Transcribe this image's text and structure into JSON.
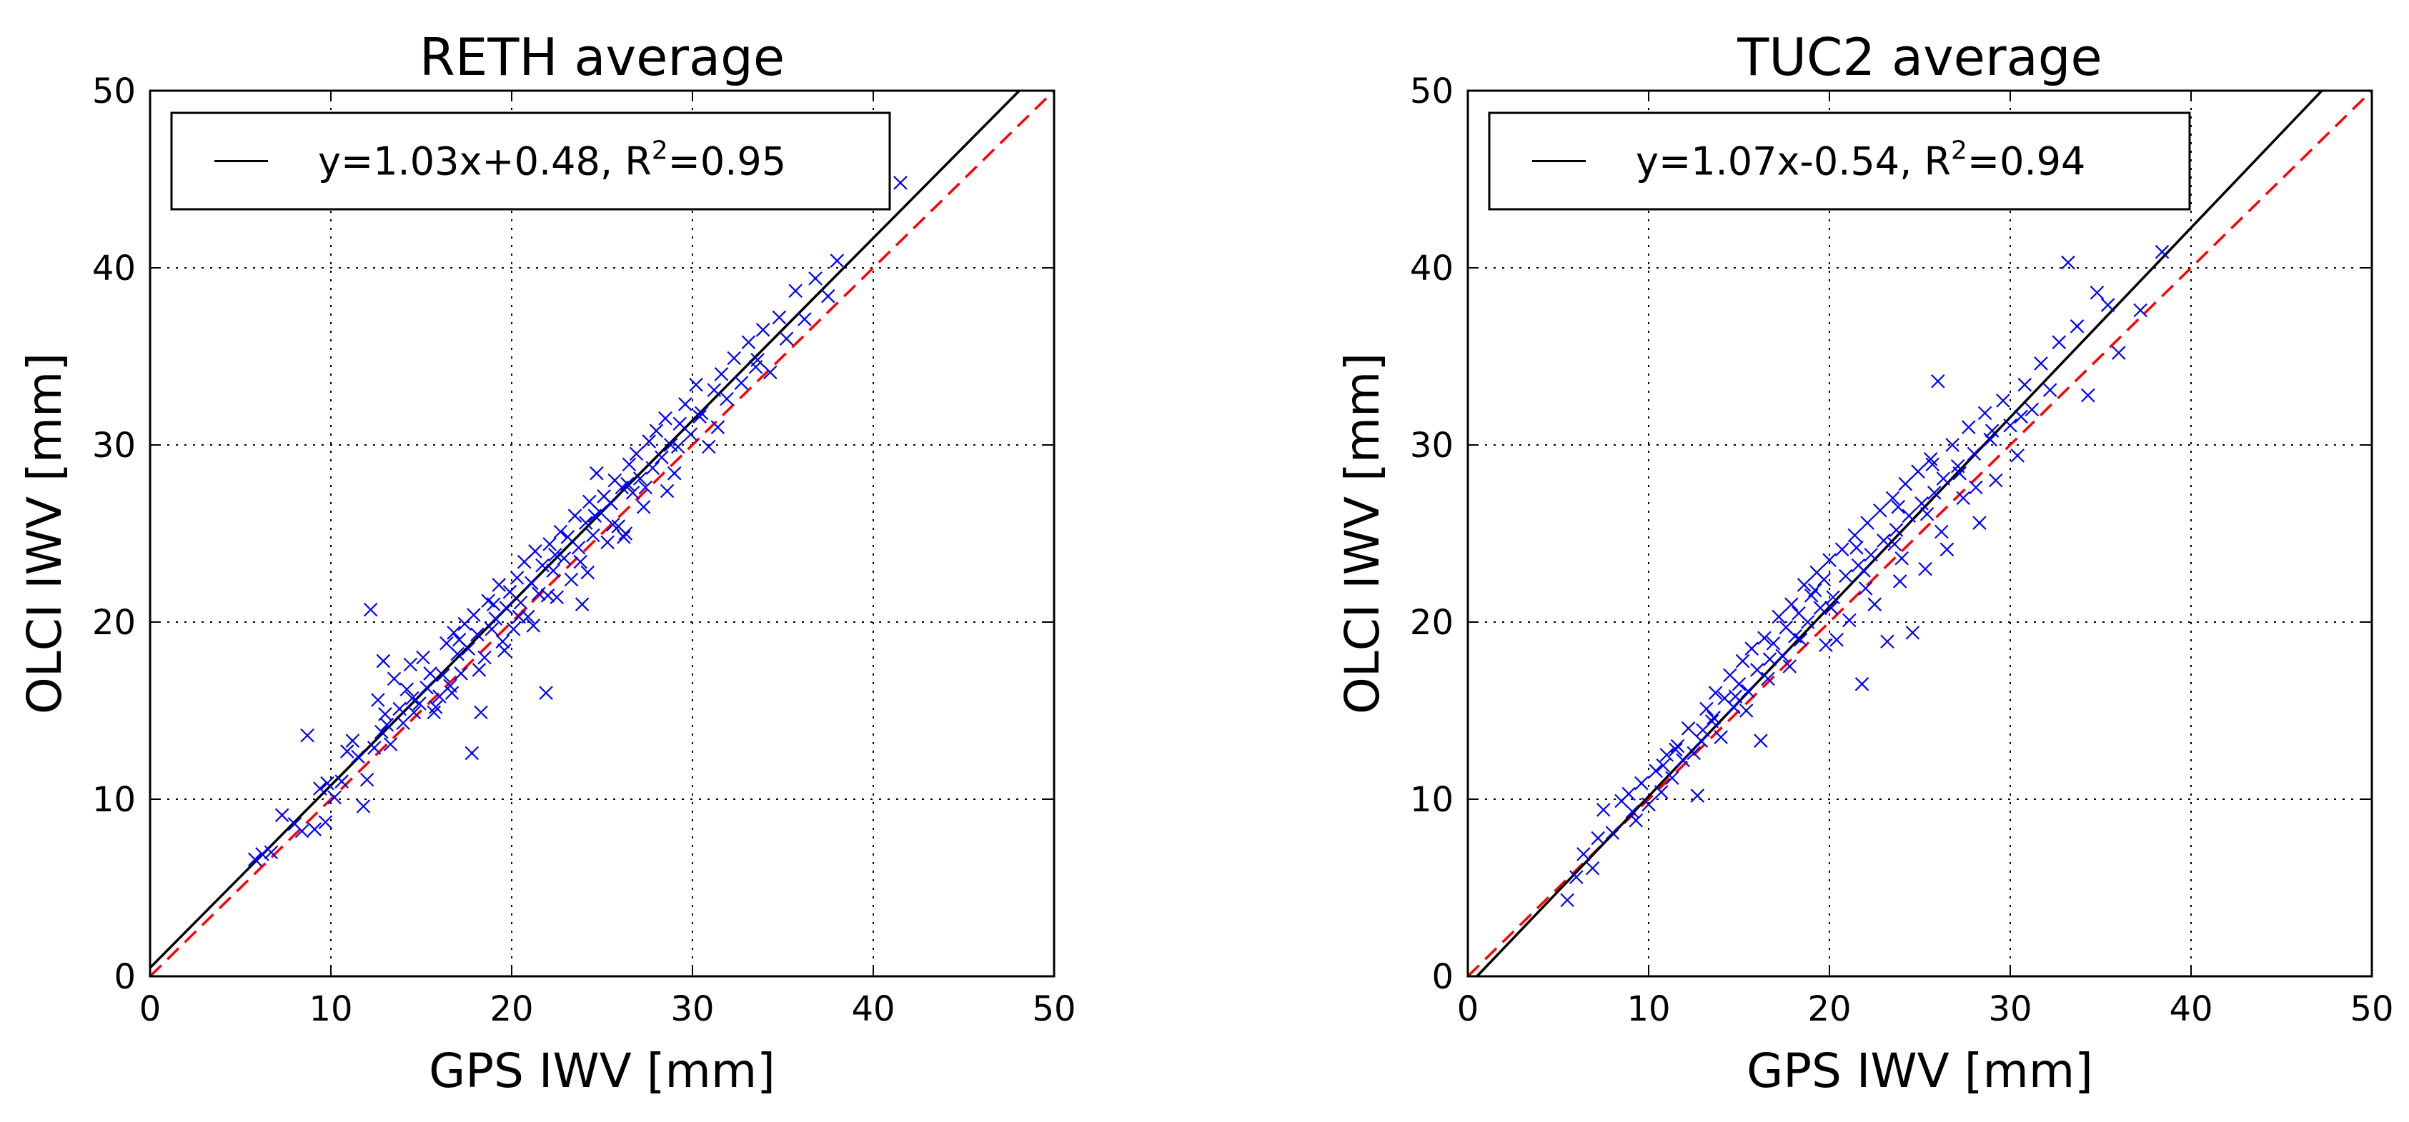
{
  "chart_data": [
    {
      "type": "scatter",
      "title": "RETH average",
      "xlabel": "GPS IWV [mm]",
      "ylabel": "OLCI IWV [mm]",
      "xlim": [
        0,
        50
      ],
      "ylim": [
        0,
        50
      ],
      "xticks": [
        "0",
        "10",
        "20",
        "30",
        "40",
        "50"
      ],
      "yticks": [
        "0",
        "10",
        "20",
        "30",
        "40",
        "50"
      ],
      "grid": true,
      "legend_position": "top-left",
      "legend_label": "y=1.03x+0.48, R",
      "legend_sup": "2",
      "legend_suffix": "=0.95",
      "fit": {
        "slope": 1.03,
        "intercept": 0.48,
        "r2": 0.95
      },
      "identity_line": true,
      "marker": "x",
      "marker_color": "#0000ff",
      "fit_color": "#000000",
      "identity_color": "#ff0000",
      "points": [
        [
          5.8,
          6.6
        ],
        [
          6.2,
          6.9
        ],
        [
          6.7,
          7.0
        ],
        [
          7.3,
          9.1
        ],
        [
          8.0,
          8.6
        ],
        [
          8.4,
          8.2
        ],
        [
          8.7,
          13.6
        ],
        [
          9.1,
          8.3
        ],
        [
          9.4,
          10.6
        ],
        [
          9.8,
          10.9
        ],
        [
          10.2,
          10.1
        ],
        [
          10.6,
          11.0
        ],
        [
          10.9,
          12.7
        ],
        [
          11.2,
          13.3
        ],
        [
          11.5,
          12.4
        ],
        [
          11.8,
          9.6
        ],
        [
          12.0,
          11.1
        ],
        [
          12.2,
          20.7
        ],
        [
          12.4,
          12.9
        ],
        [
          12.6,
          15.6
        ],
        [
          12.9,
          17.8
        ],
        [
          13.1,
          14.2
        ],
        [
          13.3,
          13.1
        ],
        [
          13.5,
          16.8
        ],
        [
          13.8,
          15.1
        ],
        [
          14.0,
          14.3
        ],
        [
          14.2,
          16.2
        ],
        [
          14.4,
          17.6
        ],
        [
          14.6,
          14.9
        ],
        [
          14.9,
          15.4
        ],
        [
          15.1,
          18.0
        ],
        [
          15.3,
          16.3
        ],
        [
          15.5,
          17.1
        ],
        [
          15.7,
          14.9
        ],
        [
          16.0,
          15.8
        ],
        [
          16.2,
          17.0
        ],
        [
          16.4,
          18.8
        ],
        [
          16.6,
          16.4
        ],
        [
          16.8,
          19.4
        ],
        [
          17.0,
          18.2
        ],
        [
          17.2,
          17.1
        ],
        [
          17.4,
          19.9
        ],
        [
          17.6,
          18.5
        ],
        [
          17.8,
          12.6
        ],
        [
          17.9,
          20.4
        ],
        [
          18.1,
          19.3
        ],
        [
          18.3,
          14.9
        ],
        [
          18.5,
          18.0
        ],
        [
          18.7,
          21.2
        ],
        [
          18.9,
          19.6
        ],
        [
          19.1,
          20.2
        ],
        [
          19.3,
          22.1
        ],
        [
          19.5,
          18.9
        ],
        [
          19.7,
          20.8
        ],
        [
          19.9,
          21.7
        ],
        [
          20.1,
          19.6
        ],
        [
          20.3,
          22.5
        ],
        [
          20.5,
          21.1
        ],
        [
          20.7,
          23.4
        ],
        [
          20.9,
          20.3
        ],
        [
          21.1,
          22.2
        ],
        [
          21.3,
          24.0
        ],
        [
          21.5,
          21.6
        ],
        [
          21.7,
          23.2
        ],
        [
          21.9,
          16.0
        ],
        [
          22.1,
          24.4
        ],
        [
          22.3,
          22.9
        ],
        [
          22.5,
          21.4
        ],
        [
          22.7,
          25.1
        ],
        [
          22.9,
          23.6
        ],
        [
          23.1,
          24.8
        ],
        [
          23.3,
          22.4
        ],
        [
          23.5,
          26.0
        ],
        [
          23.7,
          24.2
        ],
        [
          23.9,
          21.0
        ],
        [
          24.1,
          25.6
        ],
        [
          24.3,
          26.8
        ],
        [
          24.5,
          24.9
        ],
        [
          24.7,
          28.4
        ],
        [
          24.9,
          26.2
        ],
        [
          25.1,
          27.1
        ],
        [
          25.3,
          24.5
        ],
        [
          25.5,
          26.7
        ],
        [
          25.7,
          28.0
        ],
        [
          25.9,
          25.4
        ],
        [
          26.1,
          27.6
        ],
        [
          26.3,
          25.0
        ],
        [
          26.5,
          28.9
        ],
        [
          26.7,
          27.3
        ],
        [
          26.9,
          29.5
        ],
        [
          27.1,
          28.1
        ],
        [
          27.3,
          26.5
        ],
        [
          27.6,
          30.2
        ],
        [
          27.8,
          28.7
        ],
        [
          28.0,
          30.8
        ],
        [
          28.3,
          29.3
        ],
        [
          28.5,
          31.5
        ],
        [
          28.8,
          30.0
        ],
        [
          29.0,
          28.4
        ],
        [
          29.3,
          31.2
        ],
        [
          29.6,
          32.3
        ],
        [
          29.9,
          30.6
        ],
        [
          30.2,
          33.4
        ],
        [
          30.5,
          31.8
        ],
        [
          30.9,
          29.9
        ],
        [
          31.2,
          33.1
        ],
        [
          31.6,
          34.0
        ],
        [
          31.9,
          32.6
        ],
        [
          32.3,
          34.9
        ],
        [
          32.7,
          33.5
        ],
        [
          33.1,
          35.8
        ],
        [
          33.5,
          34.4
        ],
        [
          33.9,
          36.5
        ],
        [
          34.3,
          34.1
        ],
        [
          34.8,
          37.2
        ],
        [
          35.2,
          36.0
        ],
        [
          35.7,
          38.7
        ],
        [
          36.2,
          37.1
        ],
        [
          36.8,
          39.4
        ],
        [
          37.5,
          38.4
        ],
        [
          38.0,
          40.4
        ],
        [
          41.5,
          44.8
        ],
        [
          9.7,
          8.7
        ],
        [
          13.0,
          14.8
        ],
        [
          15.8,
          15.2
        ],
        [
          18.2,
          17.3
        ],
        [
          20.4,
          20.3
        ],
        [
          22.0,
          21.5
        ],
        [
          23.8,
          23.4
        ],
        [
          25.6,
          25.5
        ],
        [
          27.4,
          27.6
        ],
        [
          29.2,
          29.9
        ],
        [
          31.4,
          31.0
        ],
        [
          33.6,
          34.8
        ],
        [
          16.7,
          16.0
        ],
        [
          19.6,
          18.4
        ],
        [
          21.2,
          19.8
        ],
        [
          24.2,
          22.8
        ],
        [
          26.2,
          24.8
        ],
        [
          28.6,
          27.4
        ],
        [
          12.8,
          13.8
        ],
        [
          14.5,
          15.7
        ],
        [
          17.1,
          19.0
        ],
        [
          19.0,
          21.0
        ],
        [
          22.4,
          23.8
        ],
        [
          24.6,
          26.0
        ],
        [
          26.4,
          27.8
        ],
        [
          30.4,
          31.6
        ]
      ]
    },
    {
      "type": "scatter",
      "title": "TUC2 average",
      "xlabel": "GPS IWV [mm]",
      "ylabel": "OLCI IWV [mm]",
      "xlim": [
        0,
        50
      ],
      "ylim": [
        0,
        50
      ],
      "xticks": [
        "0",
        "10",
        "20",
        "30",
        "40",
        "50"
      ],
      "yticks": [
        "0",
        "10",
        "20",
        "30",
        "40",
        "50"
      ],
      "grid": true,
      "legend_position": "top-left",
      "legend_label": "y=1.07x-0.54, R",
      "legend_sup": "2",
      "legend_suffix": "=0.94",
      "fit": {
        "slope": 1.07,
        "intercept": -0.54,
        "r2": 0.94
      },
      "identity_line": true,
      "marker": "x",
      "marker_color": "#0000ff",
      "fit_color": "#000000",
      "identity_color": "#ff0000",
      "points": [
        [
          5.5,
          4.3
        ],
        [
          6.0,
          5.6
        ],
        [
          6.4,
          6.9
        ],
        [
          6.9,
          6.1
        ],
        [
          7.2,
          7.8
        ],
        [
          7.5,
          9.4
        ],
        [
          8.0,
          8.1
        ],
        [
          8.5,
          9.9
        ],
        [
          8.9,
          10.3
        ],
        [
          9.3,
          8.8
        ],
        [
          9.6,
          10.9
        ],
        [
          10.0,
          9.7
        ],
        [
          10.4,
          11.6
        ],
        [
          10.7,
          10.4
        ],
        [
          11.0,
          12.5
        ],
        [
          11.3,
          11.2
        ],
        [
          11.6,
          13.0
        ],
        [
          11.9,
          12.2
        ],
        [
          12.2,
          14.0
        ],
        [
          12.5,
          12.6
        ],
        [
          12.7,
          10.2
        ],
        [
          13.0,
          13.9
        ],
        [
          13.2,
          15.1
        ],
        [
          13.5,
          14.4
        ],
        [
          13.7,
          16.0
        ],
        [
          14.0,
          13.5
        ],
        [
          14.2,
          15.7
        ],
        [
          14.5,
          17.0
        ],
        [
          14.7,
          15.2
        ],
        [
          15.0,
          16.5
        ],
        [
          15.2,
          17.8
        ],
        [
          15.5,
          16.1
        ],
        [
          15.7,
          18.5
        ],
        [
          16.0,
          17.3
        ],
        [
          16.2,
          13.3
        ],
        [
          16.4,
          19.1
        ],
        [
          16.7,
          17.9
        ],
        [
          16.9,
          18.8
        ],
        [
          17.2,
          20.3
        ],
        [
          17.4,
          18.1
        ],
        [
          17.6,
          19.7
        ],
        [
          17.9,
          21.0
        ],
        [
          18.1,
          19.2
        ],
        [
          18.3,
          20.5
        ],
        [
          18.6,
          22.1
        ],
        [
          18.8,
          20.0
        ],
        [
          19.0,
          21.5
        ],
        [
          19.3,
          22.8
        ],
        [
          19.5,
          20.8
        ],
        [
          19.7,
          22.4
        ],
        [
          20.0,
          23.5
        ],
        [
          20.2,
          21.4
        ],
        [
          20.4,
          19.0
        ],
        [
          20.7,
          24.1
        ],
        [
          20.9,
          22.6
        ],
        [
          21.1,
          20.1
        ],
        [
          21.4,
          24.9
        ],
        [
          21.6,
          23.2
        ],
        [
          21.8,
          16.5
        ],
        [
          22.1,
          25.6
        ],
        [
          22.3,
          23.8
        ],
        [
          22.5,
          21.0
        ],
        [
          22.8,
          26.3
        ],
        [
          23.0,
          24.6
        ],
        [
          23.2,
          18.9
        ],
        [
          23.5,
          27.0
        ],
        [
          23.7,
          25.2
        ],
        [
          23.9,
          22.3
        ],
        [
          24.2,
          27.8
        ],
        [
          24.4,
          26.0
        ],
        [
          24.6,
          19.4
        ],
        [
          24.9,
          28.5
        ],
        [
          25.1,
          26.7
        ],
        [
          25.3,
          23.0
        ],
        [
          25.6,
          29.2
        ],
        [
          25.8,
          27.3
        ],
        [
          26.0,
          33.6
        ],
        [
          26.3,
          28.1
        ],
        [
          26.5,
          24.1
        ],
        [
          26.8,
          30.0
        ],
        [
          27.1,
          28.8
        ],
        [
          27.4,
          27.0
        ],
        [
          27.7,
          31.0
        ],
        [
          28.0,
          29.5
        ],
        [
          28.3,
          25.6
        ],
        [
          28.6,
          31.8
        ],
        [
          28.9,
          30.3
        ],
        [
          29.2,
          28.0
        ],
        [
          29.6,
          32.5
        ],
        [
          30.0,
          31.1
        ],
        [
          30.4,
          29.4
        ],
        [
          30.8,
          33.4
        ],
        [
          31.2,
          32.0
        ],
        [
          31.7,
          34.6
        ],
        [
          32.2,
          33.1
        ],
        [
          32.7,
          35.8
        ],
        [
          33.2,
          40.3
        ],
        [
          33.7,
          36.7
        ],
        [
          34.3,
          32.8
        ],
        [
          34.8,
          38.6
        ],
        [
          35.4,
          37.9
        ],
        [
          36.0,
          35.2
        ],
        [
          37.2,
          37.6
        ],
        [
          38.4,
          40.9
        ],
        [
          10.8,
          11.9
        ],
        [
          12.9,
          13.3
        ],
        [
          14.8,
          15.8
        ],
        [
          16.6,
          16.8
        ],
        [
          18.4,
          19.0
        ],
        [
          20.1,
          20.8
        ],
        [
          21.9,
          22.9
        ],
        [
          23.6,
          24.4
        ],
        [
          25.4,
          26.1
        ],
        [
          27.2,
          28.4
        ],
        [
          29.0,
          30.8
        ],
        [
          30.6,
          31.6
        ],
        [
          15.4,
          15.0
        ],
        [
          17.8,
          17.5
        ],
        [
          19.8,
          18.7
        ],
        [
          22.0,
          21.9
        ],
        [
          24.0,
          23.6
        ],
        [
          26.2,
          25.1
        ],
        [
          28.1,
          27.6
        ],
        [
          13.6,
          14.6
        ],
        [
          19.2,
          21.8
        ],
        [
          21.5,
          24.2
        ],
        [
          23.8,
          26.5
        ],
        [
          25.7,
          28.9
        ],
        [
          9.1,
          9.3
        ],
        [
          11.5,
          12.8
        ]
      ]
    }
  ]
}
